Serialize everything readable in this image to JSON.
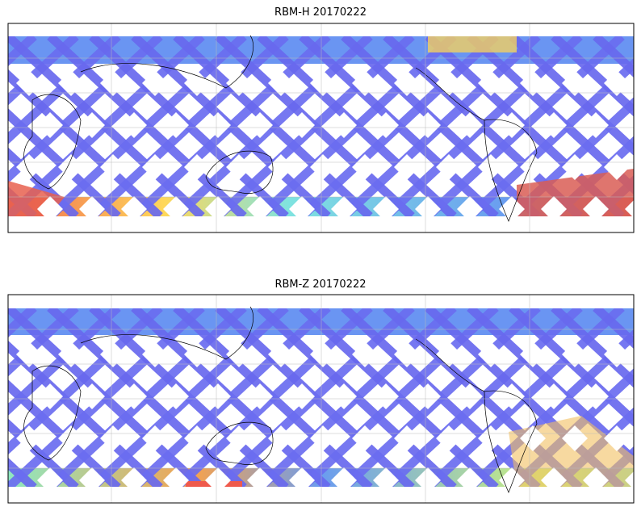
{
  "panels": [
    {
      "title": "RBM-H 20170222"
    },
    {
      "title": "RBM-Z 20170222"
    }
  ]
}
